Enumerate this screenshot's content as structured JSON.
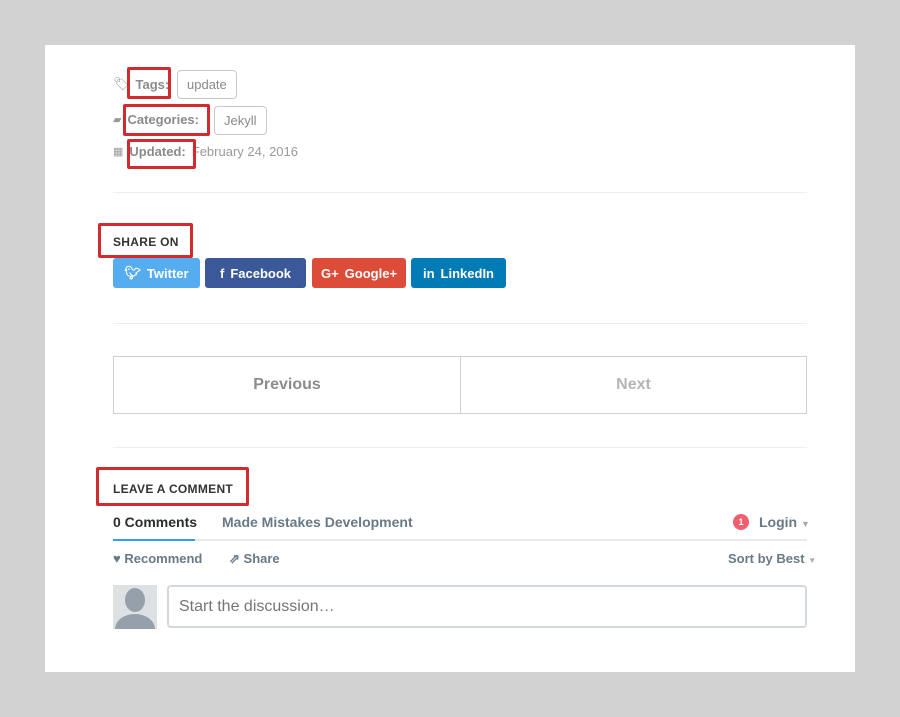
{
  "meta": {
    "tags_label": "Tags:",
    "tag": "update",
    "categories_label": "Categories:",
    "category": "Jekyll",
    "updated_label": "Updated:",
    "updated_date": "February 24, 2016"
  },
  "share": {
    "heading": "SHARE ON",
    "buttons": [
      {
        "label": "Twitter",
        "color": "#55acee"
      },
      {
        "label": "Facebook",
        "color": "#3b5998"
      },
      {
        "label": "Google+",
        "color": "#dd4b39"
      },
      {
        "label": "LinkedIn",
        "color": "#007bb6"
      }
    ]
  },
  "pagination": {
    "previous": "Previous",
    "next": "Next"
  },
  "comments": {
    "heading": "LEAVE A COMMENT",
    "tab_count": "0 Comments",
    "community": "Made Mistakes Development",
    "notif_count": "1",
    "login": "Login",
    "recommend": "Recommend",
    "share": "Share",
    "sort": "Sort by Best",
    "placeholder": "Start the discussion…"
  },
  "annotation_color": "#d12a2f"
}
